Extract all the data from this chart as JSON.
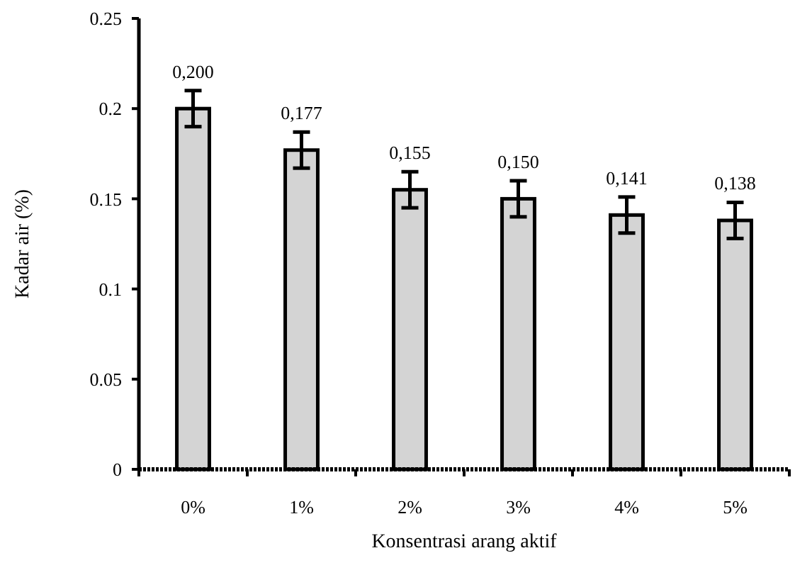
{
  "chart_data": {
    "type": "bar",
    "xlabel": "Konsentrasi arang aktif",
    "ylabel": "Kadar air (%)",
    "categories": [
      "0%",
      "1%",
      "2%",
      "3%",
      "4%",
      "5%"
    ],
    "values": [
      0.2,
      0.177,
      0.155,
      0.15,
      0.141,
      0.138
    ],
    "errors": [
      0.01,
      0.01,
      0.01,
      0.01,
      0.01,
      0.01
    ],
    "value_labels": [
      "0,200",
      "0,177",
      "0,155",
      "0,150",
      "0,141",
      "0,138"
    ],
    "color": "#d4d4d4",
    "ylim": [
      0,
      0.25
    ],
    "yticks": [
      0,
      0.05,
      0.1,
      0.15,
      0.2,
      0.25
    ],
    "grid": false
  }
}
